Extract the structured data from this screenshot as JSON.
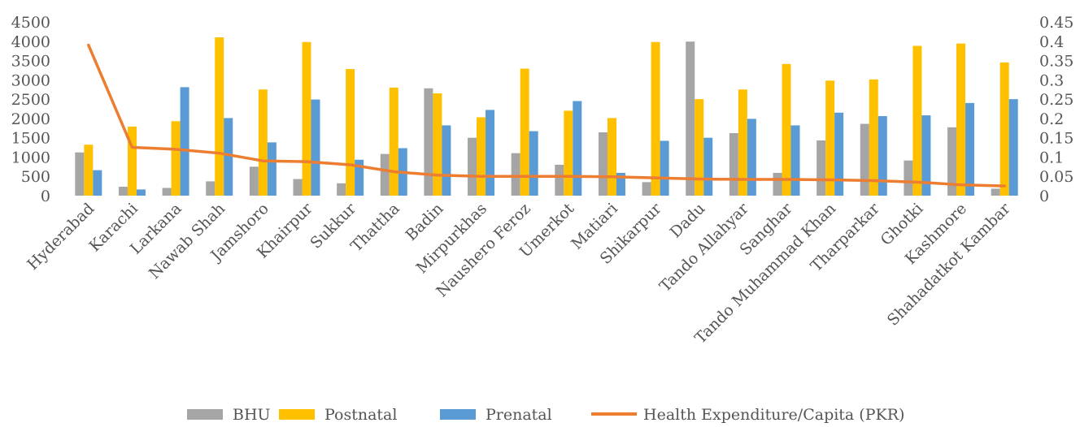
{
  "chart_data": {
    "type": "bar",
    "categories": [
      "Hyderabad",
      "Karachi",
      "Larkana",
      "Nawab Shah",
      "Jamshoro",
      "Khairpur",
      "Sukkur",
      "Thattha",
      "Badin",
      "Mirpurkhas",
      "Naushero Feroz",
      "Umerkot",
      "Matiari",
      "Shikarpur",
      "Dadu",
      "Tando Allahyar",
      "Sanghar",
      "Tando Muhammad Khan",
      "Tharparkar",
      "Ghotki",
      "Kashmore",
      "Shahadatkot Kambar"
    ],
    "series": [
      {
        "name": "BHU",
        "type": "bar",
        "axis": "left",
        "color": "#a5a5a5",
        "values": [
          1120,
          230,
          200,
          370,
          750,
          430,
          320,
          1080,
          2780,
          1500,
          1100,
          800,
          1640,
          350,
          3990,
          1620,
          590,
          1430,
          1860,
          910,
          1770,
          180
        ]
      },
      {
        "name": "Postnatal",
        "type": "bar",
        "axis": "left",
        "color": "#ffc000",
        "values": [
          1320,
          1790,
          1930,
          4100,
          2750,
          3980,
          3280,
          2800,
          2650,
          2030,
          3290,
          2200,
          2010,
          3980,
          2500,
          2750,
          3410,
          2980,
          3010,
          3880,
          3940,
          3450
        ]
      },
      {
        "name": "Prenatal",
        "type": "bar",
        "axis": "left",
        "color": "#5b9bd5",
        "values": [
          660,
          160,
          2810,
          2010,
          1380,
          2490,
          930,
          1230,
          1820,
          2220,
          1670,
          2450,
          590,
          1420,
          1500,
          1990,
          1820,
          2150,
          2060,
          2080,
          2400,
          2500
        ]
      },
      {
        "name": "Health Expenditure/Capita (PKR)",
        "type": "line",
        "axis": "right",
        "color": "#ed7d31",
        "values": [
          0.39,
          0.125,
          0.12,
          0.11,
          0.09,
          0.088,
          0.08,
          0.062,
          0.053,
          0.05,
          0.05,
          0.05,
          0.049,
          0.046,
          0.043,
          0.042,
          0.042,
          0.041,
          0.039,
          0.035,
          0.028,
          0.025
        ]
      }
    ],
    "y_left": {
      "min": 0,
      "max": 4500,
      "ticks": [
        "0",
        "500",
        "1000",
        "1500",
        "2000",
        "2500",
        "3000",
        "3500",
        "4000",
        "4500"
      ]
    },
    "y_right": {
      "min": 0,
      "max": 0.45,
      "ticks": [
        "0",
        "0.05",
        "0.1",
        "0.15",
        "0.2",
        "0.25",
        "0.3",
        "0.35",
        "0.4",
        "0.45"
      ]
    },
    "grid": false,
    "legend_position": "bottom"
  }
}
